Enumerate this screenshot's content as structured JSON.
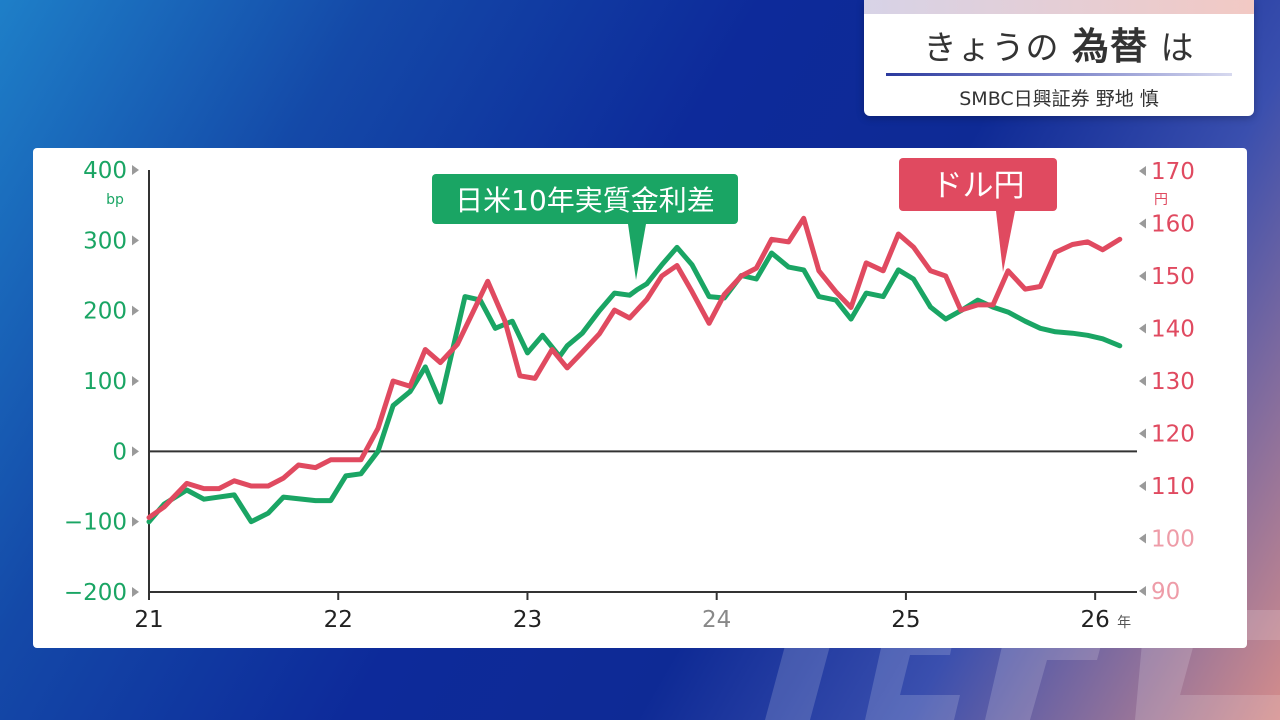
{
  "header": {
    "title_plain": "きょうの",
    "title_bold": "為替",
    "title_tail": "は",
    "subtitle": "SMBC日興証券 野地 慎"
  },
  "colors": {
    "green": "#1aa564",
    "red": "#e04a60",
    "axis": "#333333"
  },
  "chart_data": {
    "type": "line",
    "annotations": [
      {
        "text": "日米10年実質金利差",
        "series": "green"
      },
      {
        "text": "ドル円",
        "series": "red"
      }
    ],
    "x_tick_labels": [
      "21",
      "22",
      "23",
      "24",
      "25",
      "26"
    ],
    "x_unit": "年",
    "xlim": [
      2021.0,
      2026.2
    ],
    "y_left": {
      "unit": "bp",
      "ticks": [
        "400",
        "300",
        "200",
        "100",
        "0",
        "−100",
        "−200"
      ],
      "ylim": [
        -200,
        400
      ]
    },
    "y_right": {
      "unit": "円",
      "ticks": [
        "170",
        "160",
        "150",
        "140",
        "130",
        "120",
        "110",
        "100",
        "90"
      ],
      "ylim": [
        90,
        170
      ]
    },
    "series": [
      {
        "axis": "left",
        "color": "#1aa564",
        "x": [
          2021.0,
          2021.08,
          2021.2,
          2021.29,
          2021.45,
          2021.54,
          2021.63,
          2021.71,
          2021.88,
          2021.96,
          2022.04,
          2022.12,
          2022.21,
          2022.29,
          2022.38,
          2022.46,
          2022.54,
          2022.67,
          2022.75,
          2022.83,
          2022.92,
          2023.0,
          2023.08,
          2023.17,
          2023.21,
          2023.29,
          2023.38,
          2023.46,
          2023.54,
          2023.58,
          2023.63,
          2023.71,
          2023.79,
          2023.87,
          2023.96,
          2024.04,
          2024.13,
          2024.21,
          2024.29,
          2024.38,
          2024.46,
          2024.54,
          2024.63,
          2024.71,
          2024.79,
          2024.88,
          2024.96,
          2025.04,
          2025.13,
          2025.21,
          2025.29,
          2025.38,
          2025.46,
          2025.54,
          2025.63,
          2025.71,
          2025.79,
          2025.88,
          2025.96,
          2026.04,
          2026.13
        ],
        "values": [
          -100,
          -75,
          -55,
          -68,
          -62,
          -100,
          -88,
          -65,
          -70,
          -70,
          -35,
          -32,
          0,
          65,
          85,
          120,
          70,
          220,
          215,
          175,
          185,
          140,
          165,
          135,
          150,
          168,
          200,
          225,
          222,
          230,
          238,
          265,
          290,
          265,
          220,
          218,
          250,
          245,
          282,
          262,
          258,
          220,
          215,
          188,
          225,
          220,
          258,
          245,
          205,
          188,
          200,
          215,
          205,
          198,
          185,
          175,
          170,
          168,
          165,
          160,
          150
        ]
      },
      {
        "axis": "right",
        "color": "#e04a60",
        "x": [
          2021.0,
          2021.08,
          2021.2,
          2021.29,
          2021.37,
          2021.45,
          2021.54,
          2021.63,
          2021.71,
          2021.79,
          2021.88,
          2021.96,
          2022.04,
          2022.12,
          2022.21,
          2022.29,
          2022.38,
          2022.46,
          2022.54,
          2022.63,
          2022.71,
          2022.79,
          2022.88,
          2022.96,
          2023.04,
          2023.13,
          2023.21,
          2023.29,
          2023.38,
          2023.46,
          2023.54,
          2023.63,
          2023.71,
          2023.79,
          2023.87,
          2023.96,
          2024.04,
          2024.13,
          2024.21,
          2024.29,
          2024.38,
          2024.46,
          2024.54,
          2024.63,
          2024.71,
          2024.79,
          2024.88,
          2024.96,
          2025.04,
          2025.13,
          2025.21,
          2025.29,
          2025.38,
          2025.46,
          2025.54,
          2025.63,
          2025.71,
          2025.79,
          2025.88,
          2025.96,
          2026.04,
          2026.13
        ],
        "values": [
          104,
          106,
          110.5,
          109.5,
          109.5,
          111,
          110,
          110,
          111.5,
          114,
          113.5,
          115,
          115,
          115,
          121,
          130,
          129,
          136,
          133.5,
          137,
          143,
          149,
          141.5,
          131,
          130.5,
          136,
          132.5,
          135.5,
          139,
          143.5,
          142,
          145.5,
          150,
          152,
          147,
          141,
          146.5,
          150,
          151.5,
          157,
          156.5,
          161,
          151,
          147,
          144,
          152.5,
          151,
          158,
          155.5,
          151,
          150,
          143.5,
          144.5,
          144.5,
          151,
          147.5,
          148,
          154.5,
          156,
          156.5,
          155,
          157
        ]
      }
    ]
  }
}
